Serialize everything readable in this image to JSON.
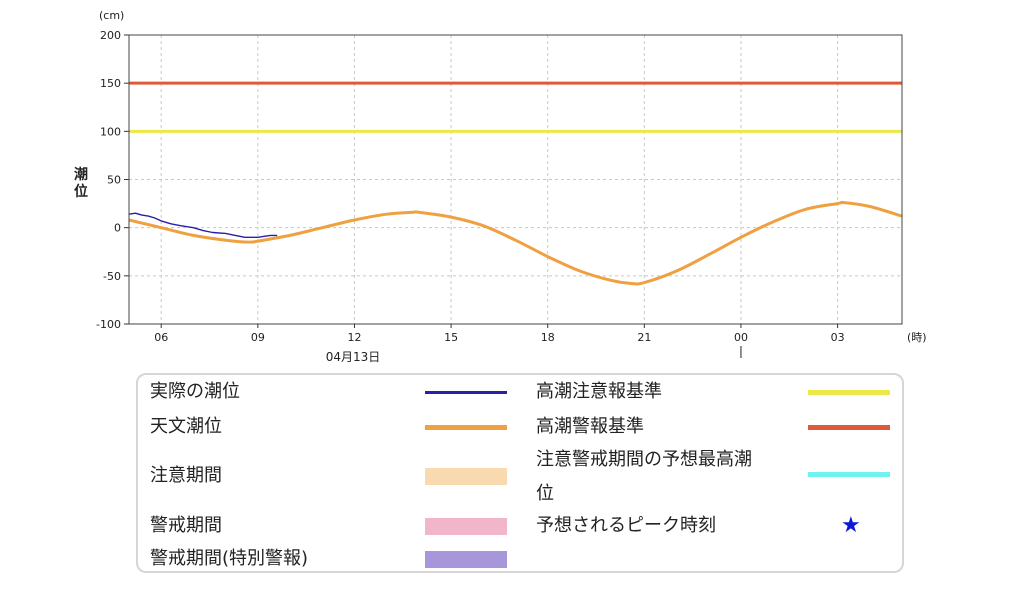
{
  "chart_data": {
    "type": "line",
    "y_unit": "(cm)",
    "ylabel_chars": [
      "潮",
      "位"
    ],
    "x_unit": "(時)",
    "ylim": [
      -100,
      200
    ],
    "yticks": [
      200,
      150,
      100,
      50,
      0,
      -50,
      -100
    ],
    "xlim": [
      "04-13 05:00",
      "04-14 05:00"
    ],
    "xtick_labels": [
      "06",
      "09",
      "12",
      "15",
      "18",
      "21",
      "00",
      "03"
    ],
    "xtick_hours": [
      6,
      9,
      12,
      15,
      18,
      21,
      24,
      27
    ],
    "date_label": "04月13日",
    "thresholds": [
      {
        "name": "高潮注意報基準",
        "value": 100,
        "color": "#ede84a"
      },
      {
        "name": "高潮警報基準",
        "value": 150,
        "color": "#de5a3b"
      }
    ],
    "series": [
      {
        "name": "天文潮位",
        "color": "#efa040",
        "x_hours": [
          5,
          6,
          7,
          8,
          8.7,
          9,
          10,
          11,
          12,
          13,
          13.8,
          14,
          15,
          16,
          17,
          18,
          19,
          20,
          20.6,
          21,
          22,
          23,
          24,
          25,
          26,
          27,
          27.2,
          28,
          29
        ],
        "values": [
          8,
          0,
          -8,
          -13,
          -15,
          -14,
          -8,
          0,
          8,
          14,
          16,
          16,
          11,
          2,
          -13,
          -30,
          -45,
          -55,
          -58,
          -57,
          -45,
          -28,
          -10,
          6,
          19,
          25,
          26,
          22,
          12
        ]
      },
      {
        "name": "実際の潮位",
        "color": "#2a1fa8",
        "x_hours": [
          5,
          5.2,
          5.4,
          5.6,
          5.8,
          6,
          6.3,
          6.6,
          7,
          7.3,
          7.6,
          8,
          8.3,
          8.6,
          9,
          9.2,
          9.4,
          9.6
        ],
        "values": [
          14,
          15,
          13,
          12,
          10,
          7,
          4,
          2,
          0,
          -3,
          -5,
          -6,
          -8,
          -10,
          -10,
          -9,
          -8,
          -8
        ]
      }
    ]
  },
  "legend": {
    "items": [
      {
        "label": "実際の潮位",
        "kind": "line",
        "color": "#2a1fa8"
      },
      {
        "label": "天文潮位",
        "kind": "line",
        "color": "#efa040"
      },
      {
        "label": "注意期間",
        "kind": "band",
        "color": "#f8d9b0"
      },
      {
        "label": "警戒期間",
        "kind": "band",
        "color": "#f2b6cb"
      },
      {
        "label": "警戒期間(特別警報)",
        "kind": "band",
        "color": "#a896da"
      },
      {
        "label": "高潮注意報基準",
        "kind": "line",
        "color": "#ede84a"
      },
      {
        "label": "高潮警報基準",
        "kind": "line",
        "color": "#de5a3b"
      },
      {
        "label": "注意警戒期間の予想最高潮",
        "label_cont": "位",
        "kind": "line",
        "color": "#6ef2f2"
      },
      {
        "label": "予想されるピーク時刻",
        "kind": "star",
        "color": "#0a19d8",
        "icon": "star-icon"
      }
    ]
  }
}
